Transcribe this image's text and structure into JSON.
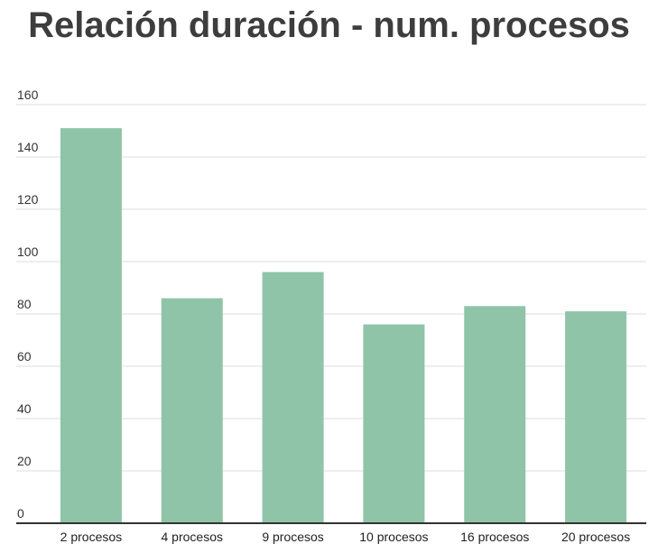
{
  "chart_data": {
    "type": "bar",
    "title": "Relación duración - num. procesos",
    "categories": [
      "2 procesos",
      "4 procesos",
      "9 procesos",
      "10 procesos",
      "16 procesos",
      "20 procesos"
    ],
    "values": [
      151,
      86,
      96,
      76,
      83,
      81
    ],
    "xlabel": "",
    "ylabel": "",
    "ylim": [
      0,
      160
    ],
    "yticks": [
      "0",
      "20",
      "40",
      "60",
      "80",
      "100",
      "120",
      "140",
      "160"
    ],
    "grid": true,
    "legend": "none",
    "colors": {
      "bar": "#8fc4a8",
      "grid": "#dddddd",
      "axis": "#333333",
      "title": "#3d3d3d"
    }
  }
}
